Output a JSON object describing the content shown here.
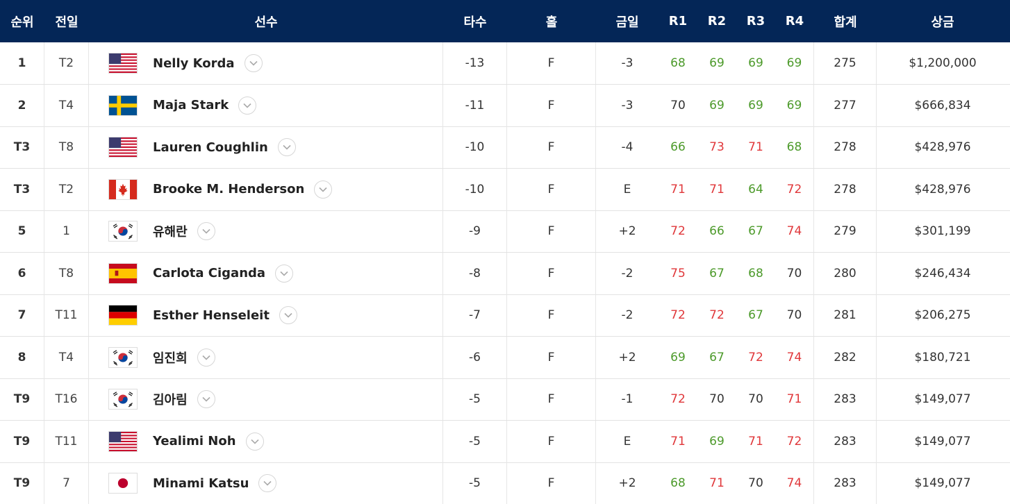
{
  "header": {
    "rank": "순위",
    "prev": "전일",
    "player": "선수",
    "to_par": "타수",
    "hole": "홀",
    "today": "금일",
    "r1": "R1",
    "r2": "R2",
    "r3": "R3",
    "r4": "R4",
    "total": "합계",
    "money": "상금"
  },
  "rows": [
    {
      "rank": "1",
      "prev": "T2",
      "flag": "usa-flag-icon",
      "name": "Nelly Korda",
      "to_par": "-13",
      "hole": "F",
      "today": "-3",
      "r1": "68",
      "r2": "69",
      "r3": "69",
      "r4": "69",
      "total": "275",
      "money": "$1,200,000"
    },
    {
      "rank": "2",
      "prev": "T4",
      "flag": "sweden-flag-icon",
      "name": "Maja Stark",
      "to_par": "-11",
      "hole": "F",
      "today": "-3",
      "r1": "70",
      "r2": "69",
      "r3": "69",
      "r4": "69",
      "total": "277",
      "money": "$666,834"
    },
    {
      "rank": "T3",
      "prev": "T8",
      "flag": "usa-flag-icon",
      "name": "Lauren Coughlin",
      "to_par": "-10",
      "hole": "F",
      "today": "-4",
      "r1": "66",
      "r2": "73",
      "r3": "71",
      "r4": "68",
      "total": "278",
      "money": "$428,976"
    },
    {
      "rank": "T3",
      "prev": "T2",
      "flag": "canada-flag-icon",
      "name": "Brooke M. Henderson",
      "to_par": "-10",
      "hole": "F",
      "today": "E",
      "r1": "71",
      "r2": "71",
      "r3": "64",
      "r4": "72",
      "total": "278",
      "money": "$428,976"
    },
    {
      "rank": "5",
      "prev": "1",
      "flag": "korea-flag-icon",
      "name": "유해란",
      "to_par": "-9",
      "hole": "F",
      "today": "+2",
      "r1": "72",
      "r2": "66",
      "r3": "67",
      "r4": "74",
      "total": "279",
      "money": "$301,199"
    },
    {
      "rank": "6",
      "prev": "T8",
      "flag": "spain-flag-icon",
      "name": "Carlota Ciganda",
      "to_par": "-8",
      "hole": "F",
      "today": "-2",
      "r1": "75",
      "r2": "67",
      "r3": "68",
      "r4": "70",
      "total": "280",
      "money": "$246,434"
    },
    {
      "rank": "7",
      "prev": "T11",
      "flag": "germany-flag-icon",
      "name": "Esther Henseleit",
      "to_par": "-7",
      "hole": "F",
      "today": "-2",
      "r1": "72",
      "r2": "72",
      "r3": "67",
      "r4": "70",
      "total": "281",
      "money": "$206,275"
    },
    {
      "rank": "8",
      "prev": "T4",
      "flag": "korea-flag-icon",
      "name": "임진희",
      "to_par": "-6",
      "hole": "F",
      "today": "+2",
      "r1": "69",
      "r2": "67",
      "r3": "72",
      "r4": "74",
      "total": "282",
      "money": "$180,721"
    },
    {
      "rank": "T9",
      "prev": "T16",
      "flag": "korea-flag-icon",
      "name": "김아림",
      "to_par": "-5",
      "hole": "F",
      "today": "-1",
      "r1": "72",
      "r2": "70",
      "r3": "70",
      "r4": "71",
      "total": "283",
      "money": "$149,077"
    },
    {
      "rank": "T9",
      "prev": "T11",
      "flag": "usa-flag-icon",
      "name": "Yealimi Noh",
      "to_par": "-5",
      "hole": "F",
      "today": "E",
      "r1": "71",
      "r2": "69",
      "r3": "71",
      "r4": "72",
      "total": "283",
      "money": "$149,077"
    },
    {
      "rank": "T9",
      "prev": "7",
      "flag": "japan-flag-icon",
      "name": "Minami Katsu",
      "to_par": "-5",
      "hole": "F",
      "today": "+2",
      "r1": "68",
      "r2": "71",
      "r3": "70",
      "r4": "74",
      "total": "283",
      "money": "$149,077"
    }
  ],
  "colors": {
    "header_bg": "#042657",
    "under_par": "#4c9a2a",
    "over_par": "#e0373a"
  }
}
